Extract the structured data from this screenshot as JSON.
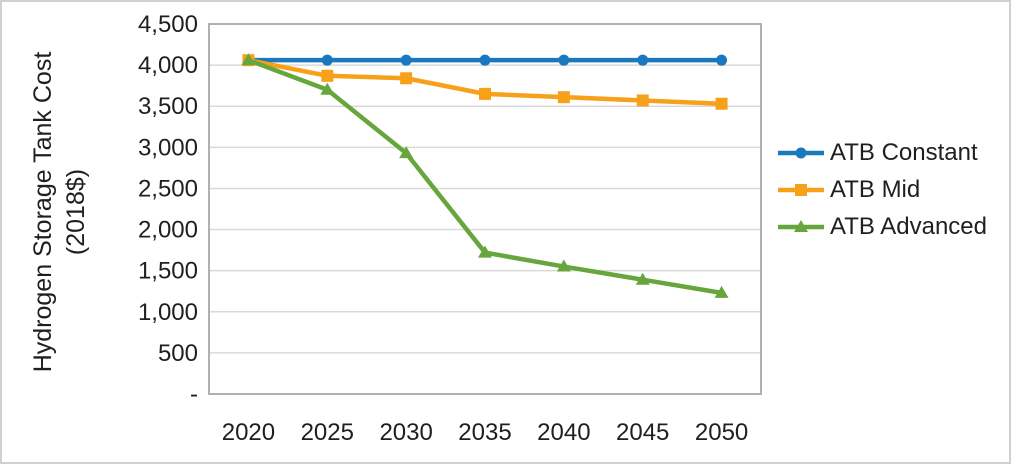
{
  "chart_data": {
    "type": "line",
    "title": "",
    "xlabel": "",
    "ylabel": "Hydrogen Storage Tank Cost (2018$)",
    "ylabel_lines": [
      "Hydrogen Storage Tank Cost",
      "(2018$)"
    ],
    "categories": [
      "2020",
      "2025",
      "2030",
      "2035",
      "2040",
      "2045",
      "2050"
    ],
    "series": [
      {
        "name": "ATB Constant",
        "marker": "circle",
        "color": "#1b78be",
        "values": [
          4060,
          4060,
          4060,
          4060,
          4060,
          4060,
          4060
        ]
      },
      {
        "name": "ATB Mid",
        "marker": "square",
        "color": "#f7a11a",
        "values": [
          4060,
          3870,
          3840,
          3650,
          3610,
          3570,
          3530
        ]
      },
      {
        "name": "ATB Advanced",
        "marker": "triangle",
        "color": "#67a63c",
        "values": [
          4060,
          3700,
          2930,
          1720,
          1550,
          1390,
          1230
        ]
      }
    ],
    "ylim": [
      0,
      4500
    ],
    "ytick_step": 500,
    "ytick_labels": [
      "-",
      "500",
      "1,000",
      "1,500",
      "2,000",
      "2,500",
      "3,000",
      "3,500",
      "4,000",
      "4,500"
    ],
    "grid": true,
    "legend_position": "right",
    "colors": {
      "gridline": "#d9d9d9",
      "plot_border": "#a8a8a8",
      "text": "#1f1f1f",
      "frame_border": "#d0d0d0"
    }
  }
}
